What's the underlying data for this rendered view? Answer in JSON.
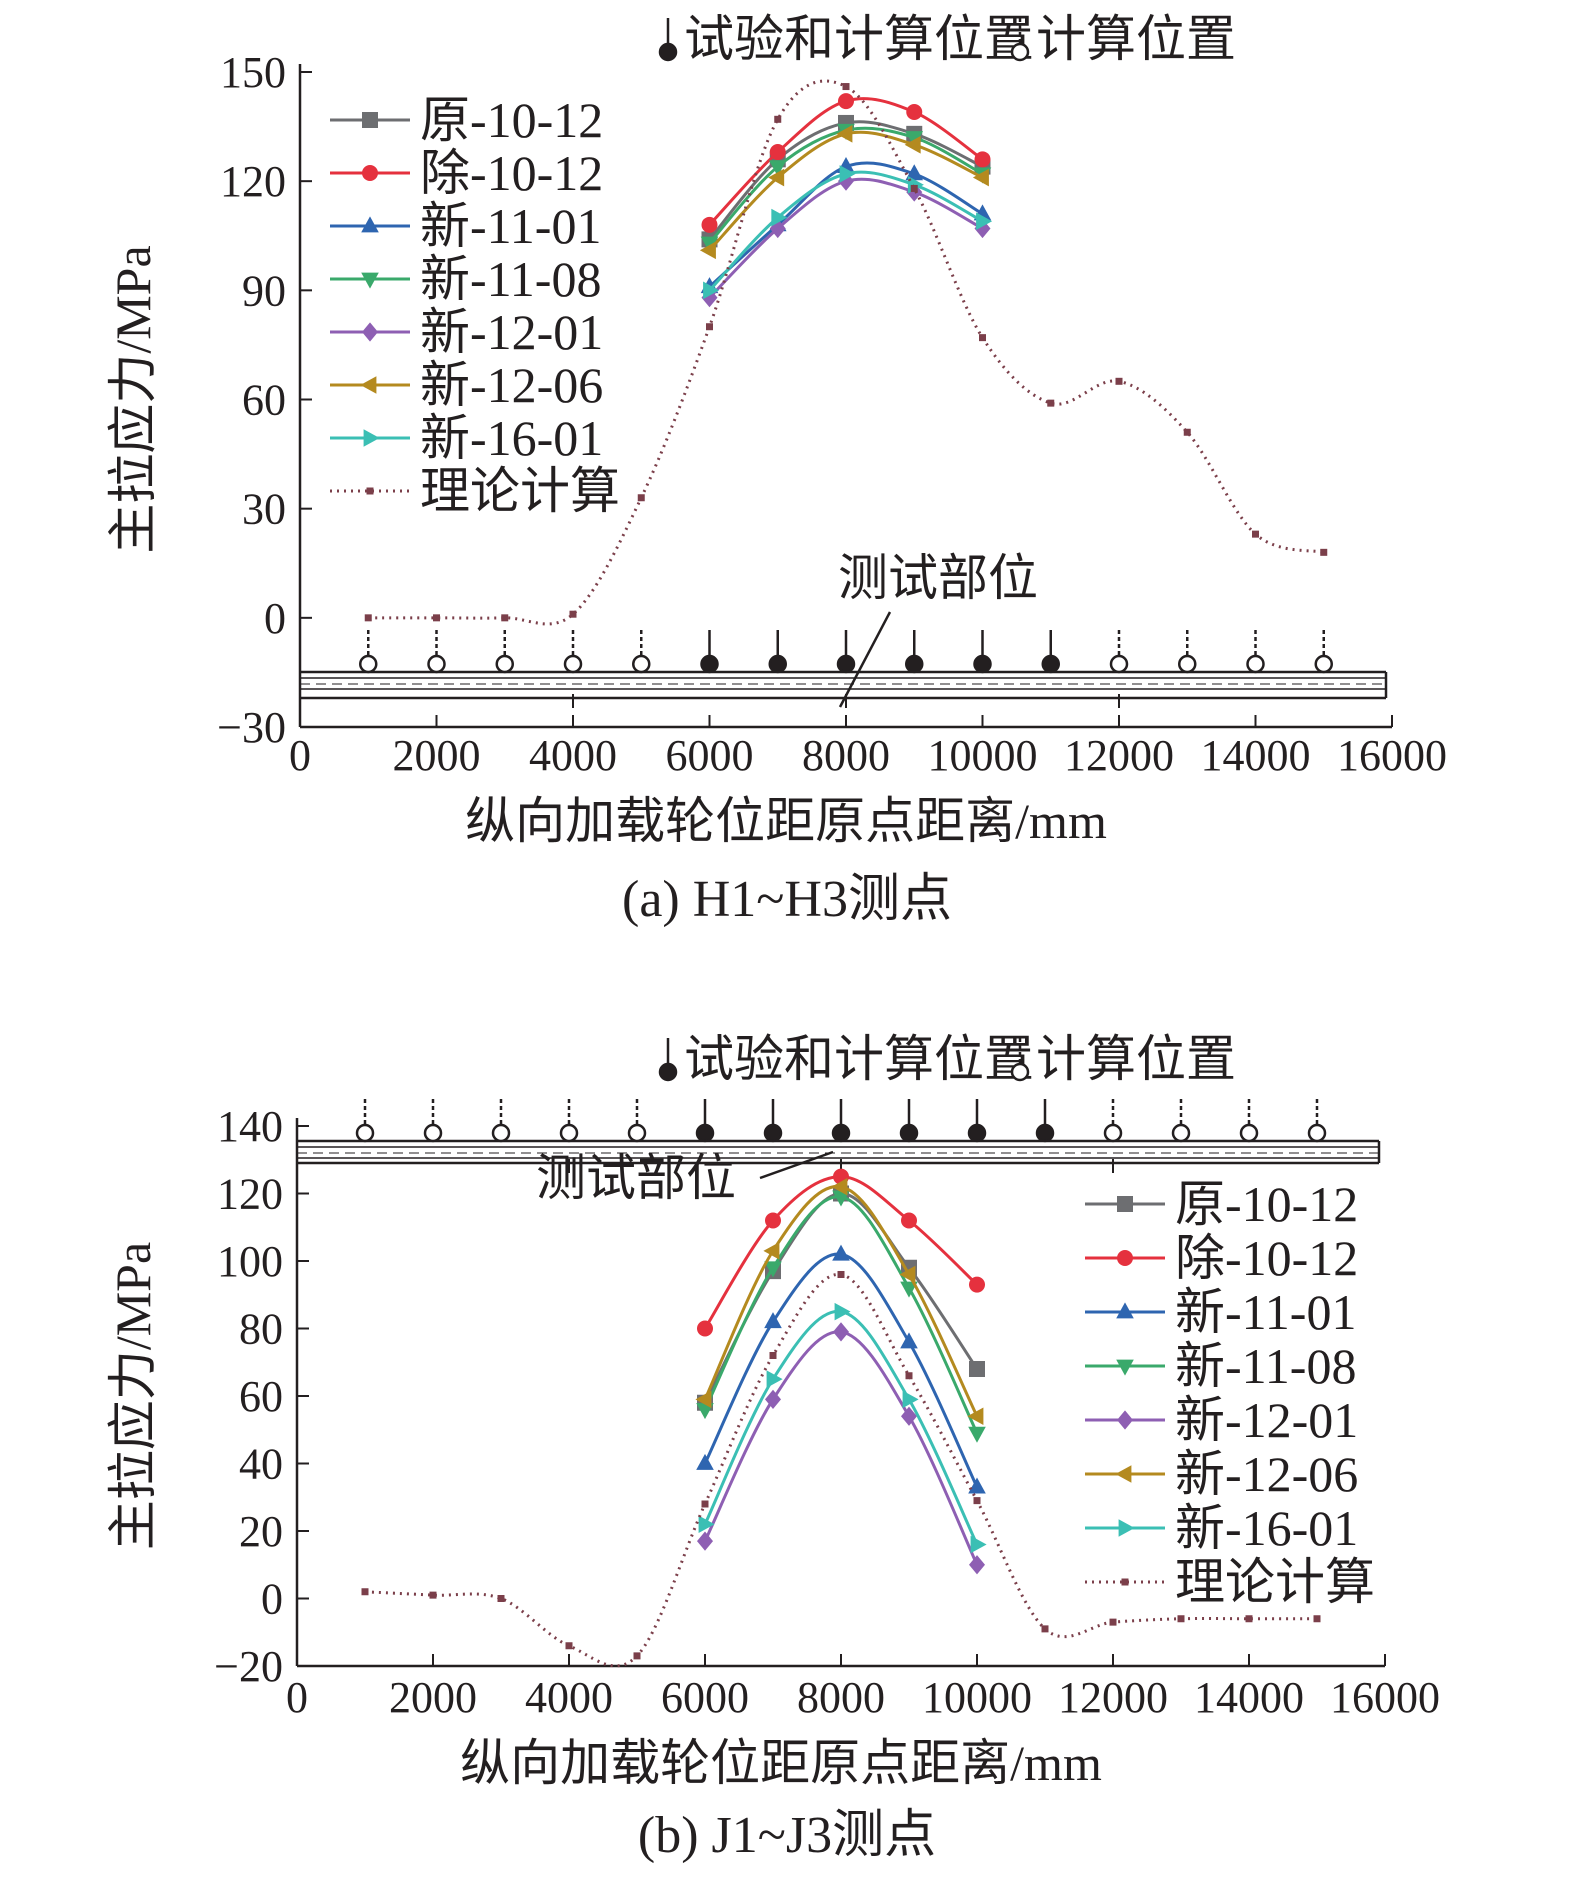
{
  "charts": [
    {
      "id": "a",
      "caption": "(a) H1~H3测点",
      "xlabel": "纵向加载轮位距原点距离/mm",
      "ylabel": "主拉应力/MPa",
      "x_ticks": [
        "0",
        "2000",
        "4000",
        "6000",
        "8000",
        "10000",
        "12000",
        "14000",
        "16000"
      ],
      "y_ticks": [
        "150",
        "120",
        "90",
        "60",
        "30",
        "0",
        "−30"
      ],
      "legend_items": [
        "原-10-12",
        "除-10-12",
        "新-11-01",
        "新-11-08",
        "新-12-01",
        "新-12-06",
        "新-16-01",
        "理论计算"
      ],
      "position_legend": {
        "test_and_calc": "试验和计算位置",
        "calc_only": "计算位置"
      },
      "test_location_label": "测试部位"
    },
    {
      "id": "b",
      "caption": "(b) J1~J3测点",
      "xlabel": "纵向加载轮位距原点距离/mm",
      "ylabel": "主拉应力/MPa",
      "x_ticks": [
        "0",
        "2000",
        "4000",
        "6000",
        "8000",
        "10000",
        "12000",
        "14000",
        "16000"
      ],
      "y_ticks": [
        "140",
        "120",
        "100",
        "80",
        "60",
        "40",
        "20",
        "0",
        "−20"
      ],
      "legend_items": [
        "原-10-12",
        "除-10-12",
        "新-11-01",
        "新-11-08",
        "新-12-01",
        "新-12-06",
        "新-16-01",
        "理论计算"
      ],
      "position_legend": {
        "test_and_calc": "试验和计算位置",
        "calc_only": "计算位置"
      },
      "test_location_label": "测试部位"
    }
  ],
  "chart_data": [
    {
      "type": "line",
      "title": "(a) H1~H3测点",
      "xlabel": "纵向加载轮位距原点距离/mm",
      "ylabel": "主拉应力/MPa",
      "xlim": [
        0,
        16000
      ],
      "ylim": [
        -30,
        150
      ],
      "legend_placement": "top-left",
      "series": [
        {
          "name": "原-10-12",
          "color": "#6d6e71",
          "marker": "square",
          "x": [
            6000,
            7000,
            8000,
            9000,
            10000
          ],
          "y": [
            104,
            126,
            136,
            133,
            124
          ]
        },
        {
          "name": "除-10-12",
          "color": "#e5313e",
          "marker": "circle",
          "x": [
            6000,
            7000,
            8000,
            9000,
            10000
          ],
          "y": [
            108,
            128,
            142,
            139,
            126
          ]
        },
        {
          "name": "新-11-01",
          "color": "#2e65b0",
          "marker": "triangle-up",
          "x": [
            6000,
            7000,
            8000,
            9000,
            10000
          ],
          "y": [
            91,
            108,
            124,
            122,
            111
          ]
        },
        {
          "name": "新-11-08",
          "color": "#3aa96b",
          "marker": "triangle-down",
          "x": [
            6000,
            7000,
            8000,
            9000,
            10000
          ],
          "y": [
            103,
            124,
            134,
            132,
            122
          ]
        },
        {
          "name": "新-12-01",
          "color": "#8e5fb3",
          "marker": "diamond",
          "x": [
            6000,
            7000,
            8000,
            9000,
            10000
          ],
          "y": [
            88,
            107,
            120,
            117,
            107
          ]
        },
        {
          "name": "新-12-06",
          "color": "#b48a1f",
          "marker": "triangle-left",
          "x": [
            6000,
            7000,
            8000,
            9000,
            10000
          ],
          "y": [
            101,
            121,
            133,
            130,
            121
          ]
        },
        {
          "name": "新-16-01",
          "color": "#3bbfb4",
          "marker": "triangle-right",
          "x": [
            6000,
            7000,
            8000,
            9000,
            10000
          ],
          "y": [
            90,
            110,
            122,
            119,
            109
          ]
        },
        {
          "name": "理论计算",
          "color": "#7b3f4a",
          "marker": "small-square",
          "style": "dotted",
          "x": [
            1000,
            2000,
            3000,
            4000,
            5000,
            6000,
            7000,
            8000,
            9000,
            10000,
            11000,
            12000,
            13000,
            14000,
            15000
          ],
          "y": [
            0,
            0,
            0,
            1,
            33,
            80,
            137,
            146,
            118,
            77,
            59,
            65,
            51,
            23,
            18
          ]
        }
      ],
      "position_markers": {
        "test_and_calc_x": [
          6000,
          7000,
          8000,
          9000,
          10000,
          11000
        ],
        "calc_only_x": [
          1000,
          2000,
          3000,
          4000,
          5000,
          12000,
          13000,
          14000,
          15000
        ]
      }
    },
    {
      "type": "line",
      "title": "(b) J1~J3测点",
      "xlabel": "纵向加载轮位距原点距离/mm",
      "ylabel": "主拉应力/MPa",
      "xlim": [
        0,
        16000
      ],
      "ylim": [
        -20,
        140
      ],
      "legend_placement": "right",
      "series": [
        {
          "name": "原-10-12",
          "color": "#6d6e71",
          "marker": "square",
          "x": [
            6000,
            7000,
            8000,
            9000,
            10000
          ],
          "y": [
            58,
            97,
            120,
            98,
            68
          ]
        },
        {
          "name": "除-10-12",
          "color": "#e5313e",
          "marker": "circle",
          "x": [
            6000,
            7000,
            8000,
            9000,
            10000
          ],
          "y": [
            80,
            112,
            125,
            112,
            93
          ]
        },
        {
          "name": "新-11-01",
          "color": "#2e65b0",
          "marker": "triangle-up",
          "x": [
            6000,
            7000,
            8000,
            9000,
            10000
          ],
          "y": [
            40,
            82,
            102,
            76,
            33
          ]
        },
        {
          "name": "新-11-08",
          "color": "#3aa96b",
          "marker": "triangle-down",
          "x": [
            6000,
            7000,
            8000,
            9000,
            10000
          ],
          "y": [
            56,
            98,
            119,
            92,
            49
          ]
        },
        {
          "name": "新-12-01",
          "color": "#8e5fb3",
          "marker": "diamond",
          "x": [
            6000,
            7000,
            8000,
            9000,
            10000
          ],
          "y": [
            17,
            59,
            79,
            54,
            10
          ]
        },
        {
          "name": "新-12-06",
          "color": "#b48a1f",
          "marker": "triangle-left",
          "x": [
            6000,
            7000,
            8000,
            9000,
            10000
          ],
          "y": [
            59,
            103,
            122,
            96,
            54
          ]
        },
        {
          "name": "新-16-01",
          "color": "#3bbfb4",
          "marker": "triangle-right",
          "x": [
            6000,
            7000,
            8000,
            9000,
            10000
          ],
          "y": [
            22,
            65,
            85,
            59,
            16
          ]
        },
        {
          "name": "理论计算",
          "color": "#7b3f4a",
          "marker": "small-square",
          "style": "dotted",
          "x": [
            1000,
            2000,
            3000,
            4000,
            5000,
            6000,
            7000,
            8000,
            9000,
            10000,
            11000,
            12000,
            13000,
            14000,
            15000
          ],
          "y": [
            2,
            1,
            0,
            -14,
            -17,
            28,
            72,
            96,
            66,
            29,
            -9,
            -7,
            -6,
            -6,
            -6
          ]
        }
      ],
      "position_markers": {
        "test_and_calc_x": [
          6000,
          7000,
          8000,
          9000,
          10000,
          11000
        ],
        "calc_only_x": [
          1000,
          2000,
          3000,
          4000,
          5000,
          12000,
          13000,
          14000,
          15000
        ]
      }
    }
  ]
}
